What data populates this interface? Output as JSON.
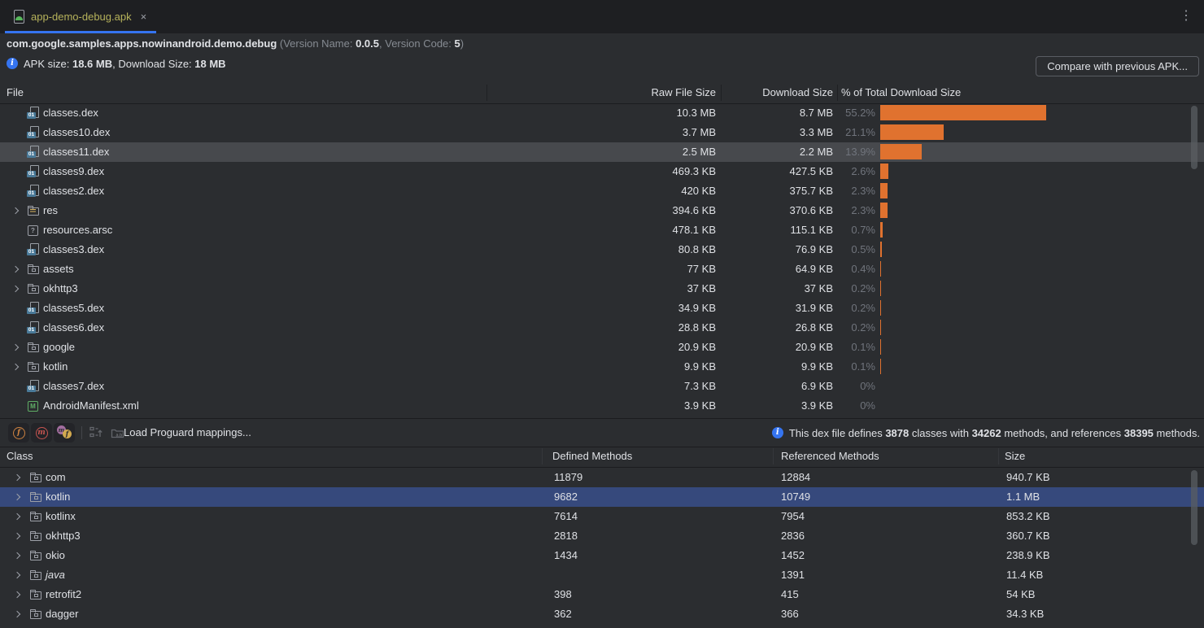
{
  "colors": {
    "accent_blue": "#3574f0",
    "bar_orange": "#e0722f",
    "selection_gray": "#47494d",
    "selection_blue": "#36497c",
    "tab_title_yellow": "#b6b25b",
    "background": "#2b2d30",
    "tabbar_background": "#1e1f22"
  },
  "tab_bar": {
    "tab_title": "app-demo-debug.apk",
    "close_icon": "×",
    "kebab_icon": "⋮"
  },
  "header": {
    "package_name": "com.google.samples.apps.nowinandroid.demo.debug",
    "version_open": " (Version Name: ",
    "version_name": "0.0.5",
    "version_sep": ", Version Code: ",
    "version_code": "5",
    "version_close": ")",
    "apk_size_label": "APK size: ",
    "apk_size_value": "18.6 MB",
    "download_size_label": ", Download Size: ",
    "download_size_value": "18 MB",
    "compare_button_label": "Compare with previous APK..."
  },
  "file_table": {
    "columns": {
      "file": "File",
      "raw": "Raw File Size",
      "download": "Download Size",
      "pct": "% of Total Download Size"
    },
    "rows": [
      {
        "name": "classes.dex",
        "icon": "dex-file-icon",
        "chevron": false,
        "selected": false,
        "raw": "10.3 MB",
        "download": "8.7 MB",
        "pct": "55.2%",
        "pct_val": 55.2
      },
      {
        "name": "classes10.dex",
        "icon": "dex-file-icon",
        "chevron": false,
        "selected": false,
        "raw": "3.7 MB",
        "download": "3.3 MB",
        "pct": "21.1%",
        "pct_val": 21.1
      },
      {
        "name": "classes11.dex",
        "icon": "dex-file-icon",
        "chevron": false,
        "selected": true,
        "raw": "2.5 MB",
        "download": "2.2 MB",
        "pct": "13.9%",
        "pct_val": 13.9
      },
      {
        "name": "classes9.dex",
        "icon": "dex-file-icon",
        "chevron": false,
        "selected": false,
        "raw": "469.3 KB",
        "download": "427.5 KB",
        "pct": "2.6%",
        "pct_val": 2.6
      },
      {
        "name": "classes2.dex",
        "icon": "dex-file-icon",
        "chevron": false,
        "selected": false,
        "raw": "420 KB",
        "download": "375.7 KB",
        "pct": "2.3%",
        "pct_val": 2.3
      },
      {
        "name": "res",
        "icon": "res-folder-icon",
        "chevron": true,
        "selected": false,
        "raw": "394.6 KB",
        "download": "370.6 KB",
        "pct": "2.3%",
        "pct_val": 2.3
      },
      {
        "name": "resources.arsc",
        "icon": "arsc-file-icon",
        "chevron": false,
        "selected": false,
        "raw": "478.1 KB",
        "download": "115.1 KB",
        "pct": "0.7%",
        "pct_val": 0.7
      },
      {
        "name": "classes3.dex",
        "icon": "dex-file-icon",
        "chevron": false,
        "selected": false,
        "raw": "80.8 KB",
        "download": "76.9 KB",
        "pct": "0.5%",
        "pct_val": 0.5
      },
      {
        "name": "assets",
        "icon": "package-folder-icon",
        "chevron": true,
        "selected": false,
        "raw": "77 KB",
        "download": "64.9 KB",
        "pct": "0.4%",
        "pct_val": 0.4
      },
      {
        "name": "okhttp3",
        "icon": "package-folder-icon",
        "chevron": true,
        "selected": false,
        "raw": "37 KB",
        "download": "37 KB",
        "pct": "0.2%",
        "pct_val": 0.2
      },
      {
        "name": "classes5.dex",
        "icon": "dex-file-icon",
        "chevron": false,
        "selected": false,
        "raw": "34.9 KB",
        "download": "31.9 KB",
        "pct": "0.2%",
        "pct_val": 0.2
      },
      {
        "name": "classes6.dex",
        "icon": "dex-file-icon",
        "chevron": false,
        "selected": false,
        "raw": "28.8 KB",
        "download": "26.8 KB",
        "pct": "0.2%",
        "pct_val": 0.2
      },
      {
        "name": "google",
        "icon": "package-folder-icon",
        "chevron": true,
        "selected": false,
        "raw": "20.9 KB",
        "download": "20.9 KB",
        "pct": "0.1%",
        "pct_val": 0.1
      },
      {
        "name": "kotlin",
        "icon": "package-folder-icon",
        "chevron": true,
        "selected": false,
        "raw": "9.9 KB",
        "download": "9.9 KB",
        "pct": "0.1%",
        "pct_val": 0.1
      },
      {
        "name": "classes7.dex",
        "icon": "dex-file-icon",
        "chevron": false,
        "selected": false,
        "raw": "7.3 KB",
        "download": "6.9 KB",
        "pct": "0%",
        "pct_val": 0
      },
      {
        "name": "AndroidManifest.xml",
        "icon": "manifest-file-icon",
        "chevron": false,
        "selected": false,
        "raw": "3.9 KB",
        "download": "3.9 KB",
        "pct": "0%",
        "pct_val": 0
      }
    ]
  },
  "dex_toolbar": {
    "load_proguard_label": "Load Proguard mappings...",
    "info": {
      "prefix": "This dex file defines ",
      "classes_count": "3878",
      "mid1": " classes with ",
      "methods_count": "34262",
      "mid2": " methods, and references ",
      "referenced_count": "38395",
      "suffix": " methods."
    }
  },
  "class_table": {
    "columns": {
      "class": "Class",
      "defined": "Defined Methods",
      "referenced": "Referenced Methods",
      "size": "Size"
    },
    "rows": [
      {
        "name": "com",
        "icon": "package-folder-icon",
        "chevron": true,
        "selected": false,
        "referenced_only": false,
        "defined": "11879",
        "referenced": "12884",
        "size": "940.7 KB"
      },
      {
        "name": "kotlin",
        "icon": "package-folder-icon",
        "chevron": true,
        "selected": true,
        "referenced_only": false,
        "defined": "9682",
        "referenced": "10749",
        "size": "1.1 MB"
      },
      {
        "name": "kotlinx",
        "icon": "package-folder-icon",
        "chevron": true,
        "selected": false,
        "referenced_only": false,
        "defined": "7614",
        "referenced": "7954",
        "size": "853.2 KB"
      },
      {
        "name": "okhttp3",
        "icon": "package-folder-icon",
        "chevron": true,
        "selected": false,
        "referenced_only": false,
        "defined": "2818",
        "referenced": "2836",
        "size": "360.7 KB"
      },
      {
        "name": "okio",
        "icon": "package-folder-icon",
        "chevron": true,
        "selected": false,
        "referenced_only": false,
        "defined": "1434",
        "referenced": "1452",
        "size": "238.9 KB"
      },
      {
        "name": "java",
        "icon": "package-folder-icon",
        "chevron": true,
        "selected": false,
        "referenced_only": true,
        "defined": "",
        "referenced": "1391",
        "size": "11.4 KB"
      },
      {
        "name": "retrofit2",
        "icon": "package-folder-icon",
        "chevron": true,
        "selected": false,
        "referenced_only": false,
        "defined": "398",
        "referenced": "415",
        "size": "54 KB"
      },
      {
        "name": "dagger",
        "icon": "package-folder-icon",
        "chevron": true,
        "selected": false,
        "referenced_only": false,
        "defined": "362",
        "referenced": "366",
        "size": "34.3 KB"
      }
    ]
  }
}
